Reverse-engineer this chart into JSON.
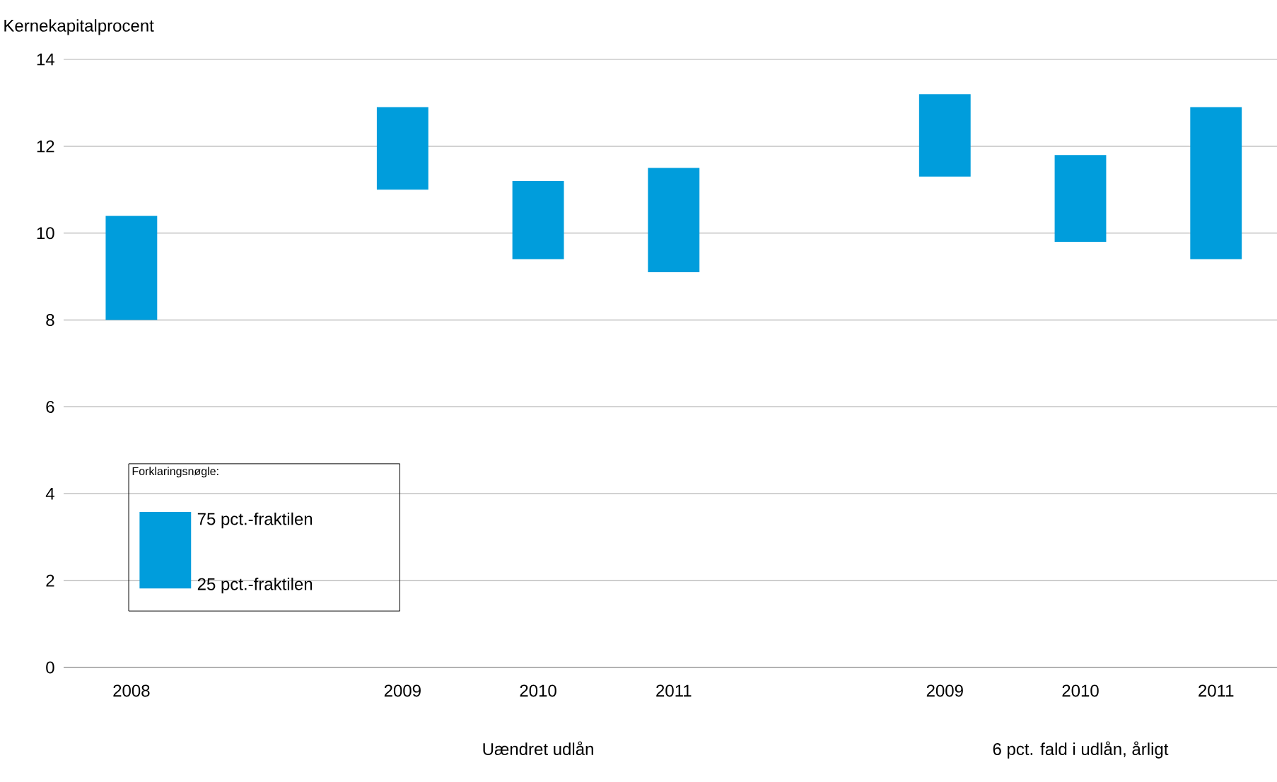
{
  "chart_data": {
    "type": "bar",
    "ylabel": "Kernekapitalprocent",
    "categories": [
      "2008",
      null,
      "2009",
      "2010",
      "2011",
      null,
      "2009",
      "2010",
      "2011"
    ],
    "base": [
      8.0,
      null,
      11.0,
      9.4,
      9.1,
      null,
      11.3,
      9.8,
      9.4
    ],
    "values": [
      2.4,
      null,
      1.9,
      1.8,
      2.4,
      null,
      1.9,
      2.0,
      3.5
    ],
    "color": "#009ddc",
    "ylim": [
      0,
      14
    ],
    "yticks": [
      0,
      2,
      4,
      6,
      8,
      10,
      12,
      14
    ],
    "grid": "y",
    "annotations": [
      "Uændret udlån",
      "6 pct. fald i udlån, årligt",
      "Forklaringsnøgle:",
      "75 pct.-fraktilen",
      "25 pct.-fraktilen"
    ]
  }
}
